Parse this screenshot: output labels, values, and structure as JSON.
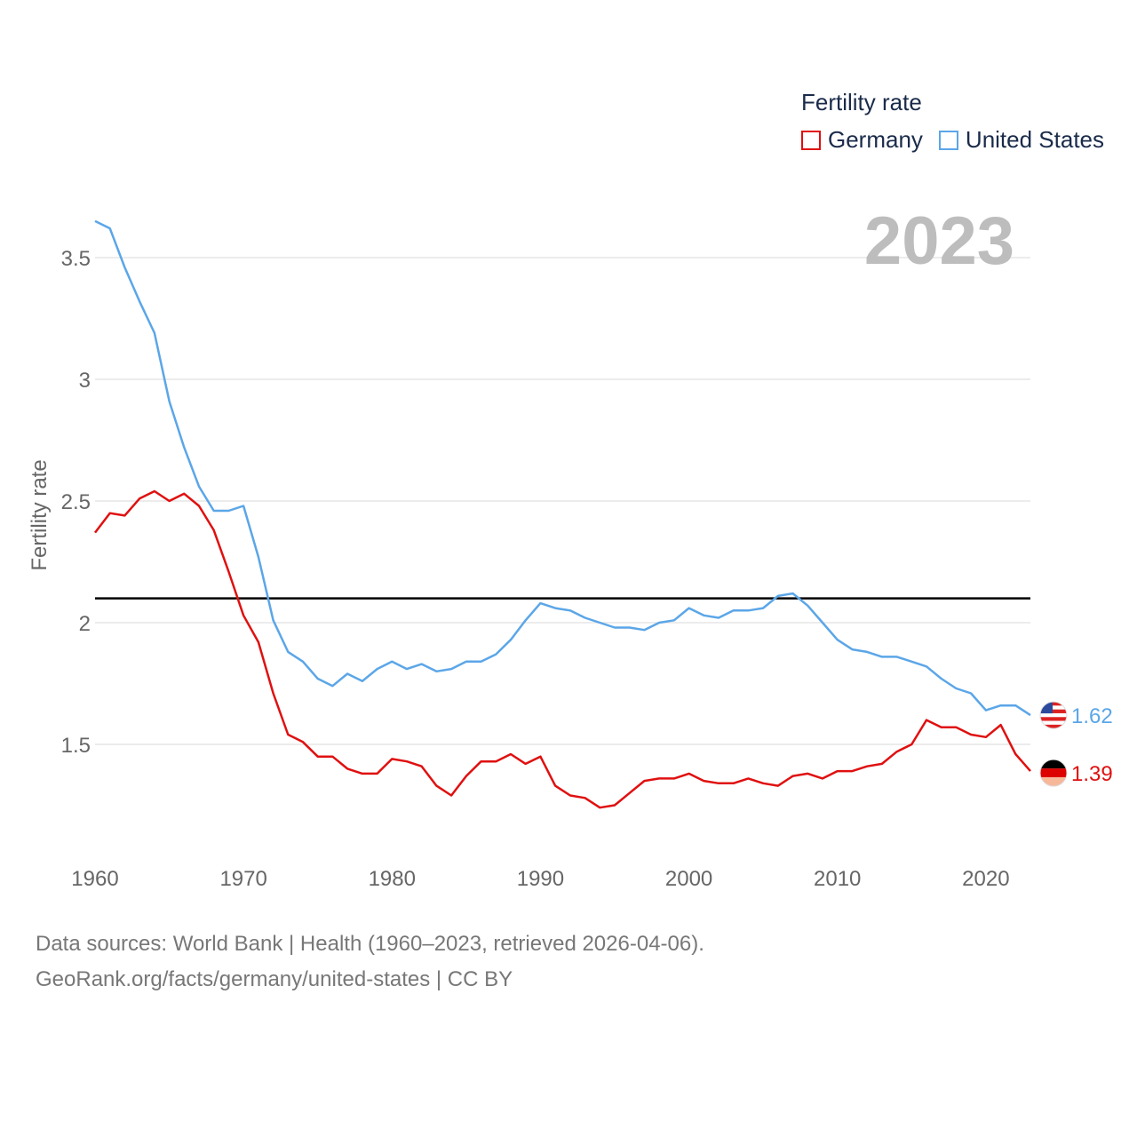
{
  "legend": {
    "title": "Fertility rate",
    "items": [
      {
        "name": "Germany",
        "color": "#e01010"
      },
      {
        "name": "United States",
        "color": "#5ba6e8"
      }
    ]
  },
  "year_label": "2023",
  "source": {
    "line1": "Data sources: World Bank | Health (1960–2023, retrieved 2026-04-06).",
    "line2": "GeoRank.org/facts/germany/united-states | CC BY"
  },
  "chart_data": {
    "type": "line",
    "ylabel": "Fertility rate",
    "xlabel": "",
    "xlim": [
      1960,
      2023
    ],
    "ylim": [
      1.1,
      3.65
    ],
    "x_ticks": [
      "1960",
      "1970",
      "1980",
      "1990",
      "2000",
      "2010",
      "2020"
    ],
    "y_ticks": [
      "1.5",
      "2",
      "2.5",
      "3",
      "3.5"
    ],
    "reference_line": 2.1,
    "x": [
      1960,
      1961,
      1962,
      1963,
      1964,
      1965,
      1966,
      1967,
      1968,
      1969,
      1970,
      1971,
      1972,
      1973,
      1974,
      1975,
      1976,
      1977,
      1978,
      1979,
      1980,
      1981,
      1982,
      1983,
      1984,
      1985,
      1986,
      1987,
      1988,
      1989,
      1990,
      1991,
      1992,
      1993,
      1994,
      1995,
      1996,
      1997,
      1998,
      1999,
      2000,
      2001,
      2002,
      2003,
      2004,
      2005,
      2006,
      2007,
      2008,
      2009,
      2010,
      2011,
      2012,
      2013,
      2014,
      2015,
      2016,
      2017,
      2018,
      2019,
      2020,
      2021,
      2022,
      2023
    ],
    "series": [
      {
        "name": "United States",
        "color": "#5ba6e8",
        "end_label": "1.62",
        "values": [
          3.65,
          3.62,
          3.46,
          3.32,
          3.19,
          2.91,
          2.72,
          2.56,
          2.46,
          2.46,
          2.48,
          2.27,
          2.01,
          1.88,
          1.84,
          1.77,
          1.74,
          1.79,
          1.76,
          1.81,
          1.84,
          1.81,
          1.83,
          1.8,
          1.81,
          1.84,
          1.84,
          1.87,
          1.93,
          2.01,
          2.08,
          2.06,
          2.05,
          2.02,
          2.0,
          1.98,
          1.98,
          1.97,
          2.0,
          2.01,
          2.06,
          2.03,
          2.02,
          2.05,
          2.05,
          2.06,
          2.11,
          2.12,
          2.07,
          2.0,
          1.93,
          1.89,
          1.88,
          1.86,
          1.86,
          1.84,
          1.82,
          1.77,
          1.73,
          1.71,
          1.64,
          1.66,
          1.66,
          1.62
        ]
      },
      {
        "name": "Germany",
        "color": "#e01010",
        "end_label": "1.39",
        "values": [
          2.37,
          2.45,
          2.44,
          2.51,
          2.54,
          2.5,
          2.53,
          2.48,
          2.38,
          2.21,
          2.03,
          1.92,
          1.71,
          1.54,
          1.51,
          1.45,
          1.45,
          1.4,
          1.38,
          1.38,
          1.44,
          1.43,
          1.41,
          1.33,
          1.29,
          1.37,
          1.43,
          1.43,
          1.46,
          1.42,
          1.45,
          1.33,
          1.29,
          1.28,
          1.24,
          1.25,
          1.3,
          1.35,
          1.36,
          1.36,
          1.38,
          1.35,
          1.34,
          1.34,
          1.36,
          1.34,
          1.33,
          1.37,
          1.38,
          1.36,
          1.39,
          1.39,
          1.41,
          1.42,
          1.47,
          1.5,
          1.6,
          1.57,
          1.57,
          1.54,
          1.53,
          1.58,
          1.46,
          1.39
        ]
      }
    ]
  }
}
